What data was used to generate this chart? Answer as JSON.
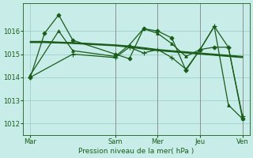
{
  "bg_color": "#c8ece8",
  "grid_color": "#a0d0cc",
  "line_color": "#1a5c1a",
  "xlabel": "Pression niveau de la mer( hPa )",
  "xtick_labels": [
    "Mar",
    "Sam",
    "Mer",
    "Jeu",
    "Ven"
  ],
  "xtick_positions": [
    0,
    48,
    72,
    96,
    120
  ],
  "xlim": [
    -4,
    124
  ],
  "ylim": [
    1011.5,
    1017.2
  ],
  "yticks": [
    1012,
    1013,
    1014,
    1015,
    1016
  ],
  "series": [
    {
      "x": [
        0,
        8,
        16,
        24,
        48,
        56,
        64,
        72,
        80,
        88,
        96,
        104,
        112,
        120
      ],
      "y": [
        1014.0,
        1015.9,
        1016.7,
        1015.6,
        1015.0,
        1014.8,
        1016.1,
        1016.0,
        1015.7,
        1014.3,
        1015.2,
        1015.3,
        1015.3,
        1012.2
      ],
      "marker": "D",
      "markersize": 2.5,
      "lw": 0.9
    },
    {
      "x": [
        0,
        8,
        16,
        24,
        48,
        56,
        64,
        72,
        80,
        88,
        96,
        104,
        112,
        120
      ],
      "y": [
        1015.55,
        1015.55,
        1015.52,
        1015.5,
        1015.4,
        1015.35,
        1015.28,
        1015.2,
        1015.15,
        1015.1,
        1015.05,
        1015.0,
        1014.95,
        1014.9
      ],
      "marker": "None",
      "markersize": 0,
      "lw": 0.9
    },
    {
      "x": [
        0,
        8,
        16,
        24,
        48,
        56,
        64,
        72,
        80,
        88,
        96,
        104,
        112,
        120
      ],
      "y": [
        1015.52,
        1015.52,
        1015.5,
        1015.48,
        1015.38,
        1015.33,
        1015.25,
        1015.18,
        1015.12,
        1015.07,
        1015.02,
        1014.97,
        1014.92,
        1014.87
      ],
      "marker": "None",
      "markersize": 0,
      "lw": 0.9
    },
    {
      "x": [
        0,
        8,
        16,
        24,
        48,
        56,
        64,
        72,
        80,
        88,
        96,
        104,
        112,
        120
      ],
      "y": [
        1015.5,
        1015.5,
        1015.48,
        1015.46,
        1015.36,
        1015.3,
        1015.22,
        1015.15,
        1015.1,
        1015.05,
        1015.0,
        1014.95,
        1014.9,
        1014.85
      ],
      "marker": "None",
      "markersize": 0,
      "lw": 0.9
    },
    {
      "x": [
        0,
        24,
        48,
        56,
        64,
        72,
        80,
        88,
        96,
        104,
        112,
        120
      ],
      "y": [
        1014.0,
        1015.0,
        1014.85,
        1015.3,
        1015.05,
        1015.2,
        1014.85,
        1014.35,
        1015.2,
        1016.2,
        1015.3,
        1012.3
      ],
      "marker": "+",
      "markersize": 4,
      "lw": 0.9
    },
    {
      "x": [
        0,
        16,
        24,
        48,
        56,
        64,
        72,
        80,
        88,
        96,
        104,
        112,
        120
      ],
      "y": [
        1014.1,
        1016.0,
        1015.15,
        1014.9,
        1015.4,
        1016.1,
        1015.9,
        1015.45,
        1014.9,
        1015.2,
        1016.2,
        1012.8,
        1012.2
      ],
      "marker": "^",
      "markersize": 2.5,
      "lw": 0.9
    }
  ],
  "vlines": [
    48,
    72,
    96,
    120
  ],
  "vline_color": "#888888"
}
